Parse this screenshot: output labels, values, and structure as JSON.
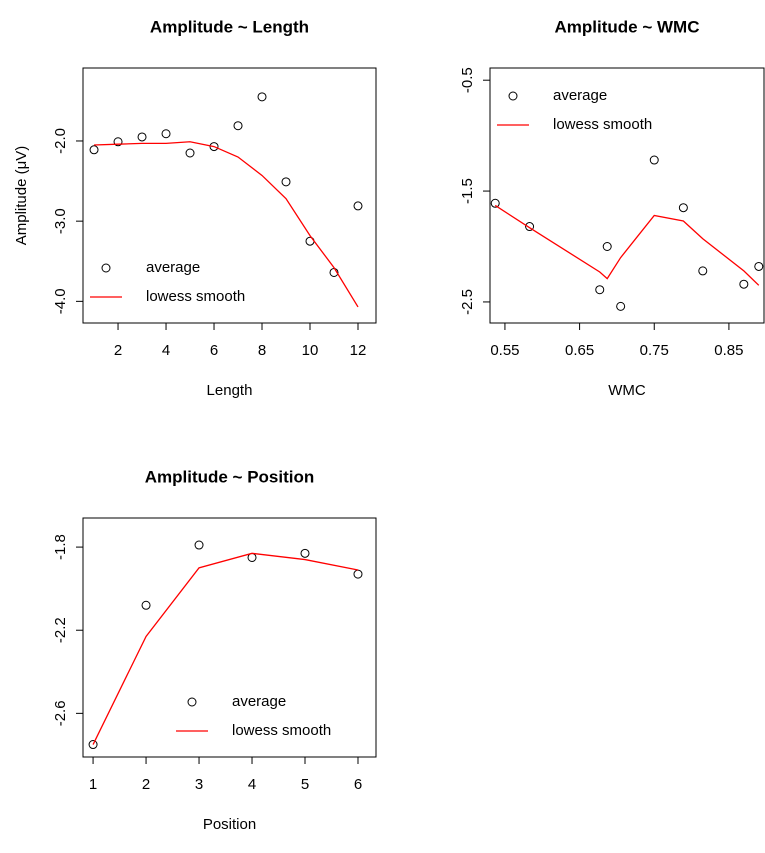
{
  "chart_data": [
    {
      "type": "scatter",
      "title": "Amplitude ~ Length",
      "xlabel": "Length",
      "ylabel": "Amplitude (μV)",
      "x": [
        1,
        2,
        3,
        4,
        5,
        6,
        7,
        8,
        9,
        10,
        11,
        12
      ],
      "series": [
        {
          "name": "average",
          "color": "#000000",
          "style": "points",
          "values": [
            -2.11,
            -2.01,
            -1.95,
            -1.91,
            -2.15,
            -2.07,
            -1.81,
            -1.45,
            -2.51,
            -3.25,
            -3.64,
            -2.81
          ]
        },
        {
          "name": "lowess smooth",
          "color": "#ff0000",
          "style": "line",
          "values": [
            -2.05,
            -2.04,
            -2.03,
            -2.03,
            -2.01,
            -2.07,
            -2.2,
            -2.43,
            -2.72,
            -3.18,
            -3.58,
            -4.07
          ]
        }
      ],
      "xlim": [
        0.54,
        12.75
      ],
      "ylim": [
        -4.27,
        -1.09
      ],
      "xticks": [
        2,
        4,
        6,
        8,
        10,
        12
      ],
      "yticks": [
        {
          "value": -4,
          "label": "-4.0"
        },
        {
          "value": -3,
          "label": "-3.0"
        },
        {
          "value": -2,
          "label": "-2.0"
        }
      ],
      "legend": "bottomleft"
    },
    {
      "type": "scatter",
      "title": "Amplitude ~ WMC",
      "xlabel": "WMC",
      "x": [
        0.537,
        0.583,
        0.677,
        0.687,
        0.705,
        0.75,
        0.789,
        0.815,
        0.87,
        0.89
      ],
      "series": [
        {
          "name": "average",
          "color": "#000000",
          "style": "points",
          "values": [
            -1.61,
            -1.82,
            -2.39,
            -2.0,
            -2.54,
            -1.22,
            -1.65,
            -2.22,
            -2.34,
            -2.18
          ]
        },
        {
          "name": "lowess smooth",
          "color": "#ff0000",
          "style": "line",
          "values": [
            -1.63,
            -1.83,
            -2.23,
            -2.29,
            -2.1,
            -1.72,
            -1.77,
            -1.93,
            -2.22,
            -2.35
          ]
        }
      ],
      "xlim": [
        0.53,
        0.897
      ],
      "ylim": [
        -2.69,
        -0.39
      ],
      "xticks": [
        0.55,
        0.65,
        0.75,
        0.85
      ],
      "yticks": [
        -2.5,
        -1.5,
        -0.5
      ],
      "legend": "topleft"
    },
    {
      "type": "scatter",
      "title": "Amplitude ~ Position",
      "xlabel": "Position",
      "x": [
        1,
        2,
        3,
        4,
        5,
        6
      ],
      "series": [
        {
          "name": "average",
          "color": "#000000",
          "style": "points",
          "values": [
            -2.75,
            -2.08,
            -1.79,
            -1.85,
            -1.83,
            -1.93
          ]
        },
        {
          "name": "lowess smooth",
          "color": "#ff0000",
          "style": "line",
          "values": [
            -2.75,
            -2.23,
            -1.9,
            -1.83,
            -1.86,
            -1.91
          ]
        }
      ],
      "xlim": [
        0.81,
        6.34
      ],
      "ylim": [
        -2.81,
        -1.66
      ],
      "xticks": [
        1,
        2,
        3,
        4,
        5,
        6
      ],
      "yticks": [
        -2.6,
        -2.2,
        -1.8
      ],
      "legend": "bottomright"
    }
  ]
}
